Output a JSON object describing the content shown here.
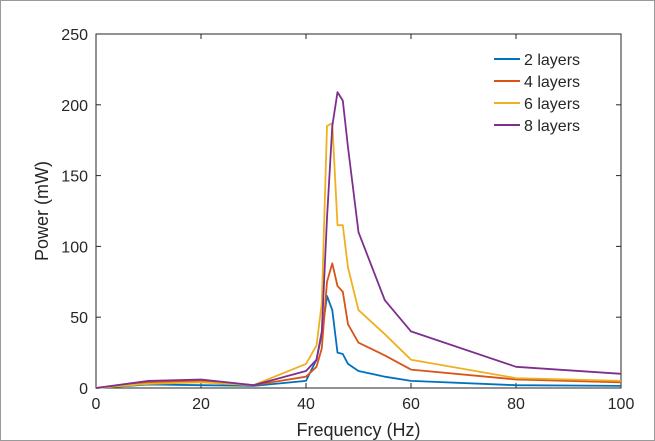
{
  "chart_data": {
    "type": "line",
    "xlabel": "Frequency (Hz)",
    "ylabel": "Power (mW)",
    "xlim": [
      0,
      100
    ],
    "ylim": [
      0,
      250
    ],
    "xticks": [
      0,
      20,
      40,
      60,
      80,
      100
    ],
    "yticks": [
      0,
      50,
      100,
      150,
      200,
      250
    ],
    "grid": false,
    "legend_position": "top-right",
    "series": [
      {
        "name": "2 layers",
        "color": "#0072BD",
        "x": [
          0,
          10,
          20,
          30,
          40,
          42,
          43,
          44,
          45,
          46,
          47,
          48,
          50,
          55,
          60,
          80,
          100
        ],
        "y": [
          0,
          2.5,
          2,
          1.5,
          5,
          20,
          38,
          65,
          55,
          25,
          24,
          17,
          12,
          8,
          5,
          2,
          1.5
        ]
      },
      {
        "name": "4 layers",
        "color": "#D95319",
        "x": [
          0,
          10,
          20,
          30,
          40,
          42,
          43,
          44,
          45,
          46,
          47,
          48,
          50,
          55,
          60,
          80,
          100
        ],
        "y": [
          0,
          4,
          5,
          2,
          8,
          15,
          28,
          75,
          88,
          72,
          68,
          45,
          32,
          23,
          13,
          6,
          4
        ]
      },
      {
        "name": "6 layers",
        "color": "#EDB120",
        "x": [
          0,
          10,
          20,
          30,
          40,
          42,
          43,
          44,
          45,
          46,
          47,
          48,
          50,
          55,
          60,
          80,
          100
        ],
        "y": [
          0,
          3,
          4,
          2,
          17,
          30,
          60,
          185,
          187,
          115,
          115,
          85,
          55,
          38,
          20,
          7,
          5
        ]
      },
      {
        "name": "8 layers",
        "color": "#7E2F8E",
        "x": [
          0,
          10,
          20,
          30,
          40,
          42,
          43,
          44,
          45,
          46,
          47,
          48,
          50,
          55,
          60,
          80,
          100
        ],
        "y": [
          0,
          5,
          6,
          2,
          12,
          20,
          40,
          120,
          185,
          209,
          203,
          170,
          110,
          62,
          40,
          15,
          10
        ]
      }
    ]
  }
}
